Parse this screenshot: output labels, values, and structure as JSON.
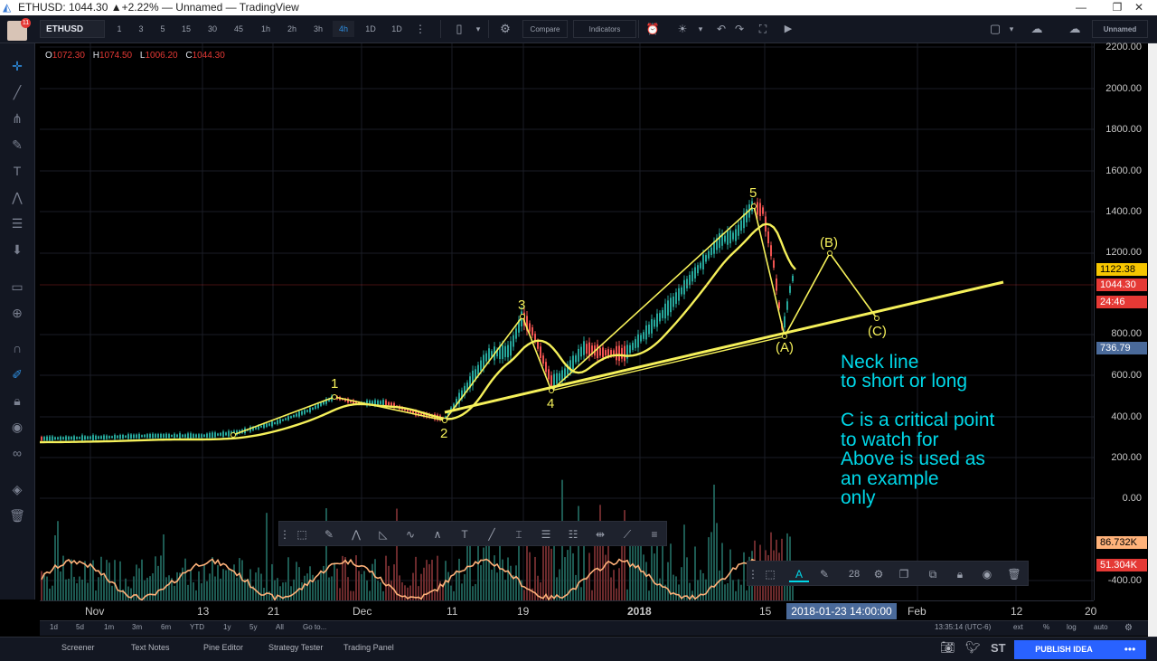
{
  "window": {
    "title": "ETHUSD: 1044.30 ▲+2.22% — Unnamed — TradingView",
    "controls": [
      "—",
      "❐",
      "✕"
    ]
  },
  "toolbar": {
    "symbol": "ETHUSD",
    "intervals": [
      "1",
      "3",
      "5",
      "15",
      "30",
      "45",
      "1h",
      "2h",
      "3h",
      "4h",
      "1D",
      "1D"
    ],
    "active_interval": "4h",
    "compare": "Compare",
    "indicators": "Indicators",
    "layout": "Unnamed"
  },
  "user": {
    "notification_count": "11"
  },
  "ohlc": {
    "o_label": "O",
    "o": "1072.30",
    "h_label": "H",
    "h": "1074.50",
    "l_label": "L",
    "l": "1006.20",
    "c_label": "C",
    "c": "1044.30"
  },
  "price_axis": {
    "ticks": [
      "2200.00",
      "2000.00",
      "1800.00",
      "1600.00",
      "1400.00",
      "1200.00",
      "800.00",
      "600.00",
      "400.00",
      "200.00",
      "0.00",
      "-400.00"
    ],
    "labels": {
      "ma_value": "1122.38",
      "last_price": "1044.30",
      "countdown": "24:46",
      "crosshair_price": "736.79",
      "volume_high": "86.732K",
      "volume_low": "51.304K"
    }
  },
  "time_axis": {
    "ticks": [
      "Nov",
      "13",
      "21",
      "Dec",
      "11",
      "19",
      "2018",
      "15",
      "Feb",
      "12",
      "20"
    ],
    "crosshair_time": "2018-01-23 14:00:00"
  },
  "wave_labels": {
    "w1": "1",
    "w2": "2",
    "w3": "3",
    "w4": "4",
    "w5": "5",
    "wA": "(A)",
    "wB": "(B)",
    "wC": "(C)"
  },
  "annotation": {
    "line1": "Neck line",
    "line2": "to short or long",
    "line3": "C is a critical point",
    "line4": "to watch for",
    "line5": "Above is used as",
    "line6": "an example",
    "line7": "only"
  },
  "property_bar": {
    "line_width": "28"
  },
  "range_bar": {
    "ranges": [
      "1d",
      "5d",
      "1m",
      "3m",
      "6m",
      "YTD",
      "1y",
      "5y",
      "All",
      "Go to..."
    ],
    "clock": "13:35:14 (UTC-6)",
    "ext": "ext",
    "percent": "%",
    "log": "log",
    "auto": "auto"
  },
  "bottom_bar": {
    "tabs": [
      "Screener",
      "Text Notes",
      "Pine Editor",
      "Strategy Tester",
      "Trading Panel"
    ],
    "st": "ST",
    "publish": "PUBLISH IDEA"
  },
  "colors": {
    "background": "#000000",
    "panel": "#131722",
    "wave_lines": "#f5f05a",
    "annotation": "#00d8e8",
    "up_candle": "#26a69a",
    "down_candle": "#ef5350",
    "last_price": "#e53935",
    "ma_label": "#f7c600",
    "crosshair_label": "#4a6a9a",
    "volume_ma": "#ffb27a",
    "publish": "#2962ff"
  }
}
